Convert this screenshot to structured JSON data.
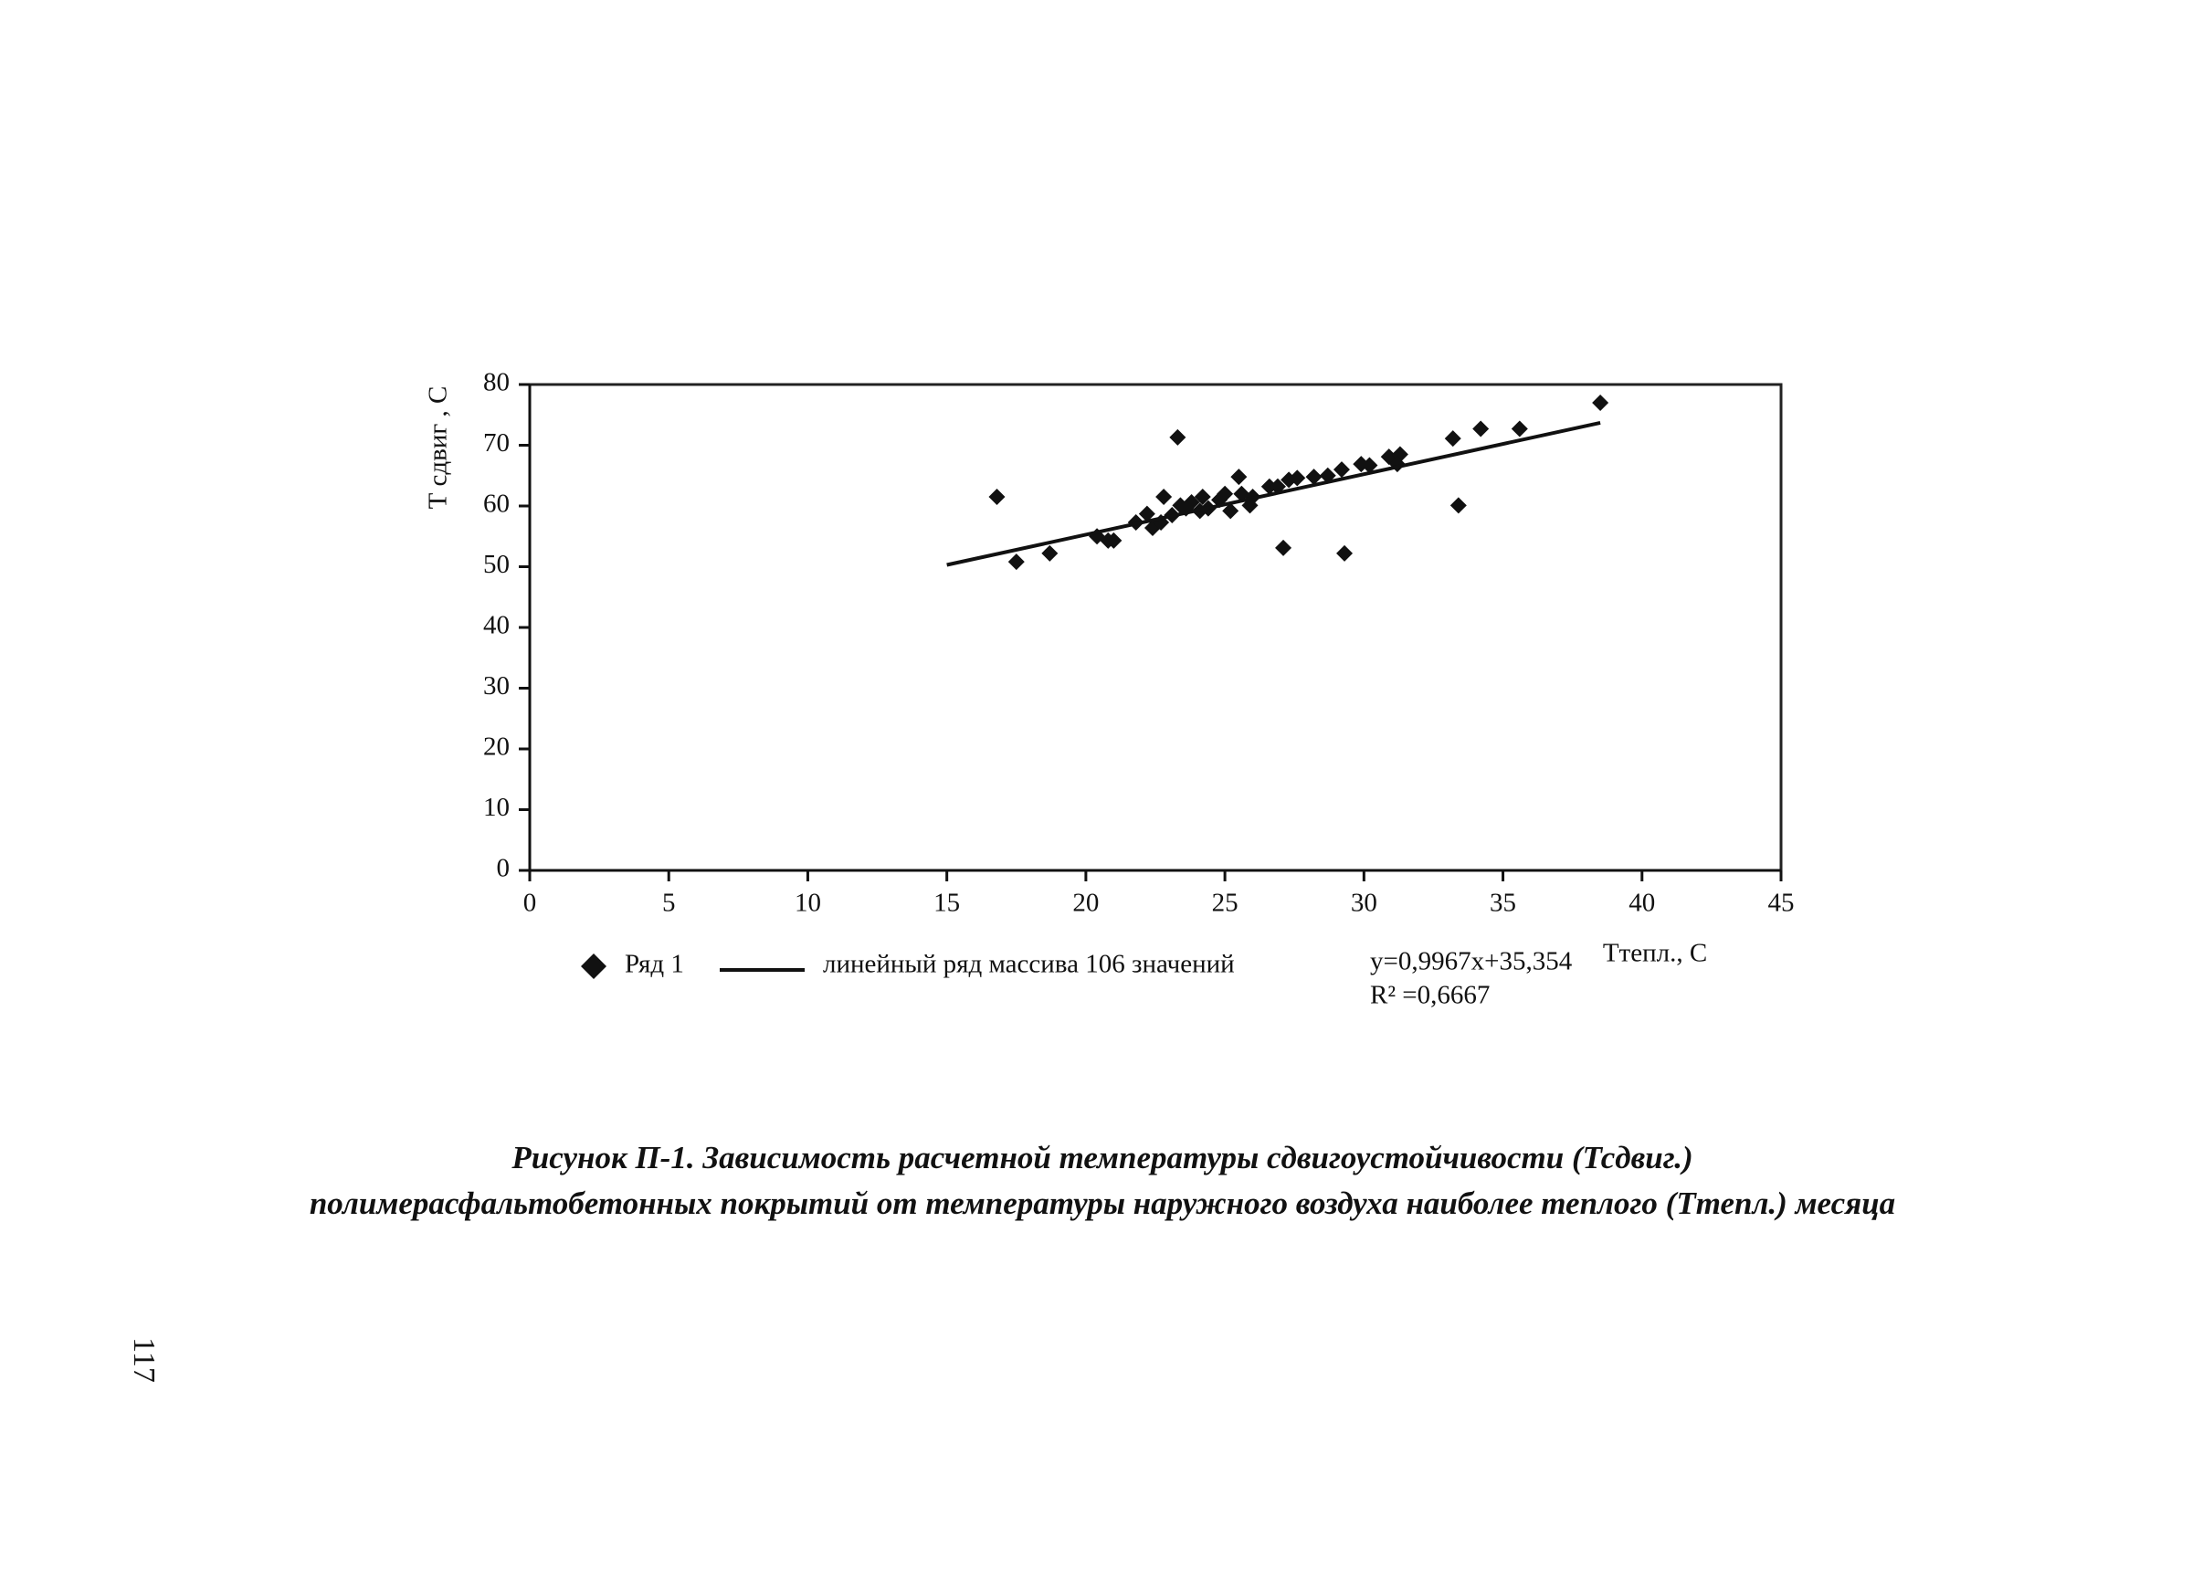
{
  "chart_data": {
    "type": "scatter",
    "y_label": "Т сдвиг , С",
    "x_label": "Ттепл., С",
    "xlim": [
      0,
      45
    ],
    "xticks": [
      0,
      5,
      10,
      15,
      20,
      25,
      30,
      35,
      40,
      45
    ],
    "ylim": [
      0,
      80
    ],
    "yticks": [
      0,
      10,
      20,
      30,
      40,
      50,
      60,
      70,
      80
    ],
    "series": [
      {
        "name": "Ряд 1",
        "color": "#111111",
        "x": [
          16.8,
          17.5,
          18.7,
          20.4,
          20.8,
          21.0,
          21.8,
          22.2,
          22.4,
          22.7,
          22.8,
          23.1,
          23.3,
          23.4,
          23.6,
          23.8,
          24.1,
          24.2,
          24.4,
          24.8,
          25.0,
          25.2,
          25.5,
          25.6,
          25.9,
          26.0,
          26.6,
          26.9,
          27.1,
          27.3,
          27.6,
          28.2,
          28.7,
          29.2,
          29.3,
          29.9,
          30.2,
          30.9,
          31.3,
          31.2,
          33.2,
          33.4,
          34.2,
          35.6,
          38.5
        ],
        "values": [
          61.5,
          50.8,
          52.2,
          55,
          54.3,
          54.3,
          57.3,
          58.7,
          56.4,
          57.3,
          61.5,
          58.5,
          71.3,
          60.1,
          59.6,
          60.6,
          59.2,
          61.5,
          59.6,
          61,
          62,
          59.2,
          64.8,
          62,
          60.1,
          61.5,
          63.2,
          63.2,
          53.1,
          64.3,
          64.6,
          64.8,
          65,
          66,
          52.2,
          66.9,
          66.7,
          68.1,
          68.5,
          66.9,
          71.1,
          60.1,
          72.7,
          72.7,
          77
        ]
      },
      {
        "name": "линейный ряд массива 106 значений",
        "type": "line",
        "color": "#111111",
        "x": [
          15,
          38.5
        ],
        "values": [
          50.3,
          73.7
        ]
      }
    ],
    "annotations": [
      "y=0,9967x+35,354",
      "R² =0,6667"
    ]
  },
  "caption": [
    "Рисунок П-1. Зависимость расчетной температуры сдвигоустойчивости (Тсдвиг.)",
    "полимерасфальтобетонных покрытий от температуры наружного воздуха наиболее теплого (Ттепл.) месяца"
  ],
  "page_number": "117"
}
